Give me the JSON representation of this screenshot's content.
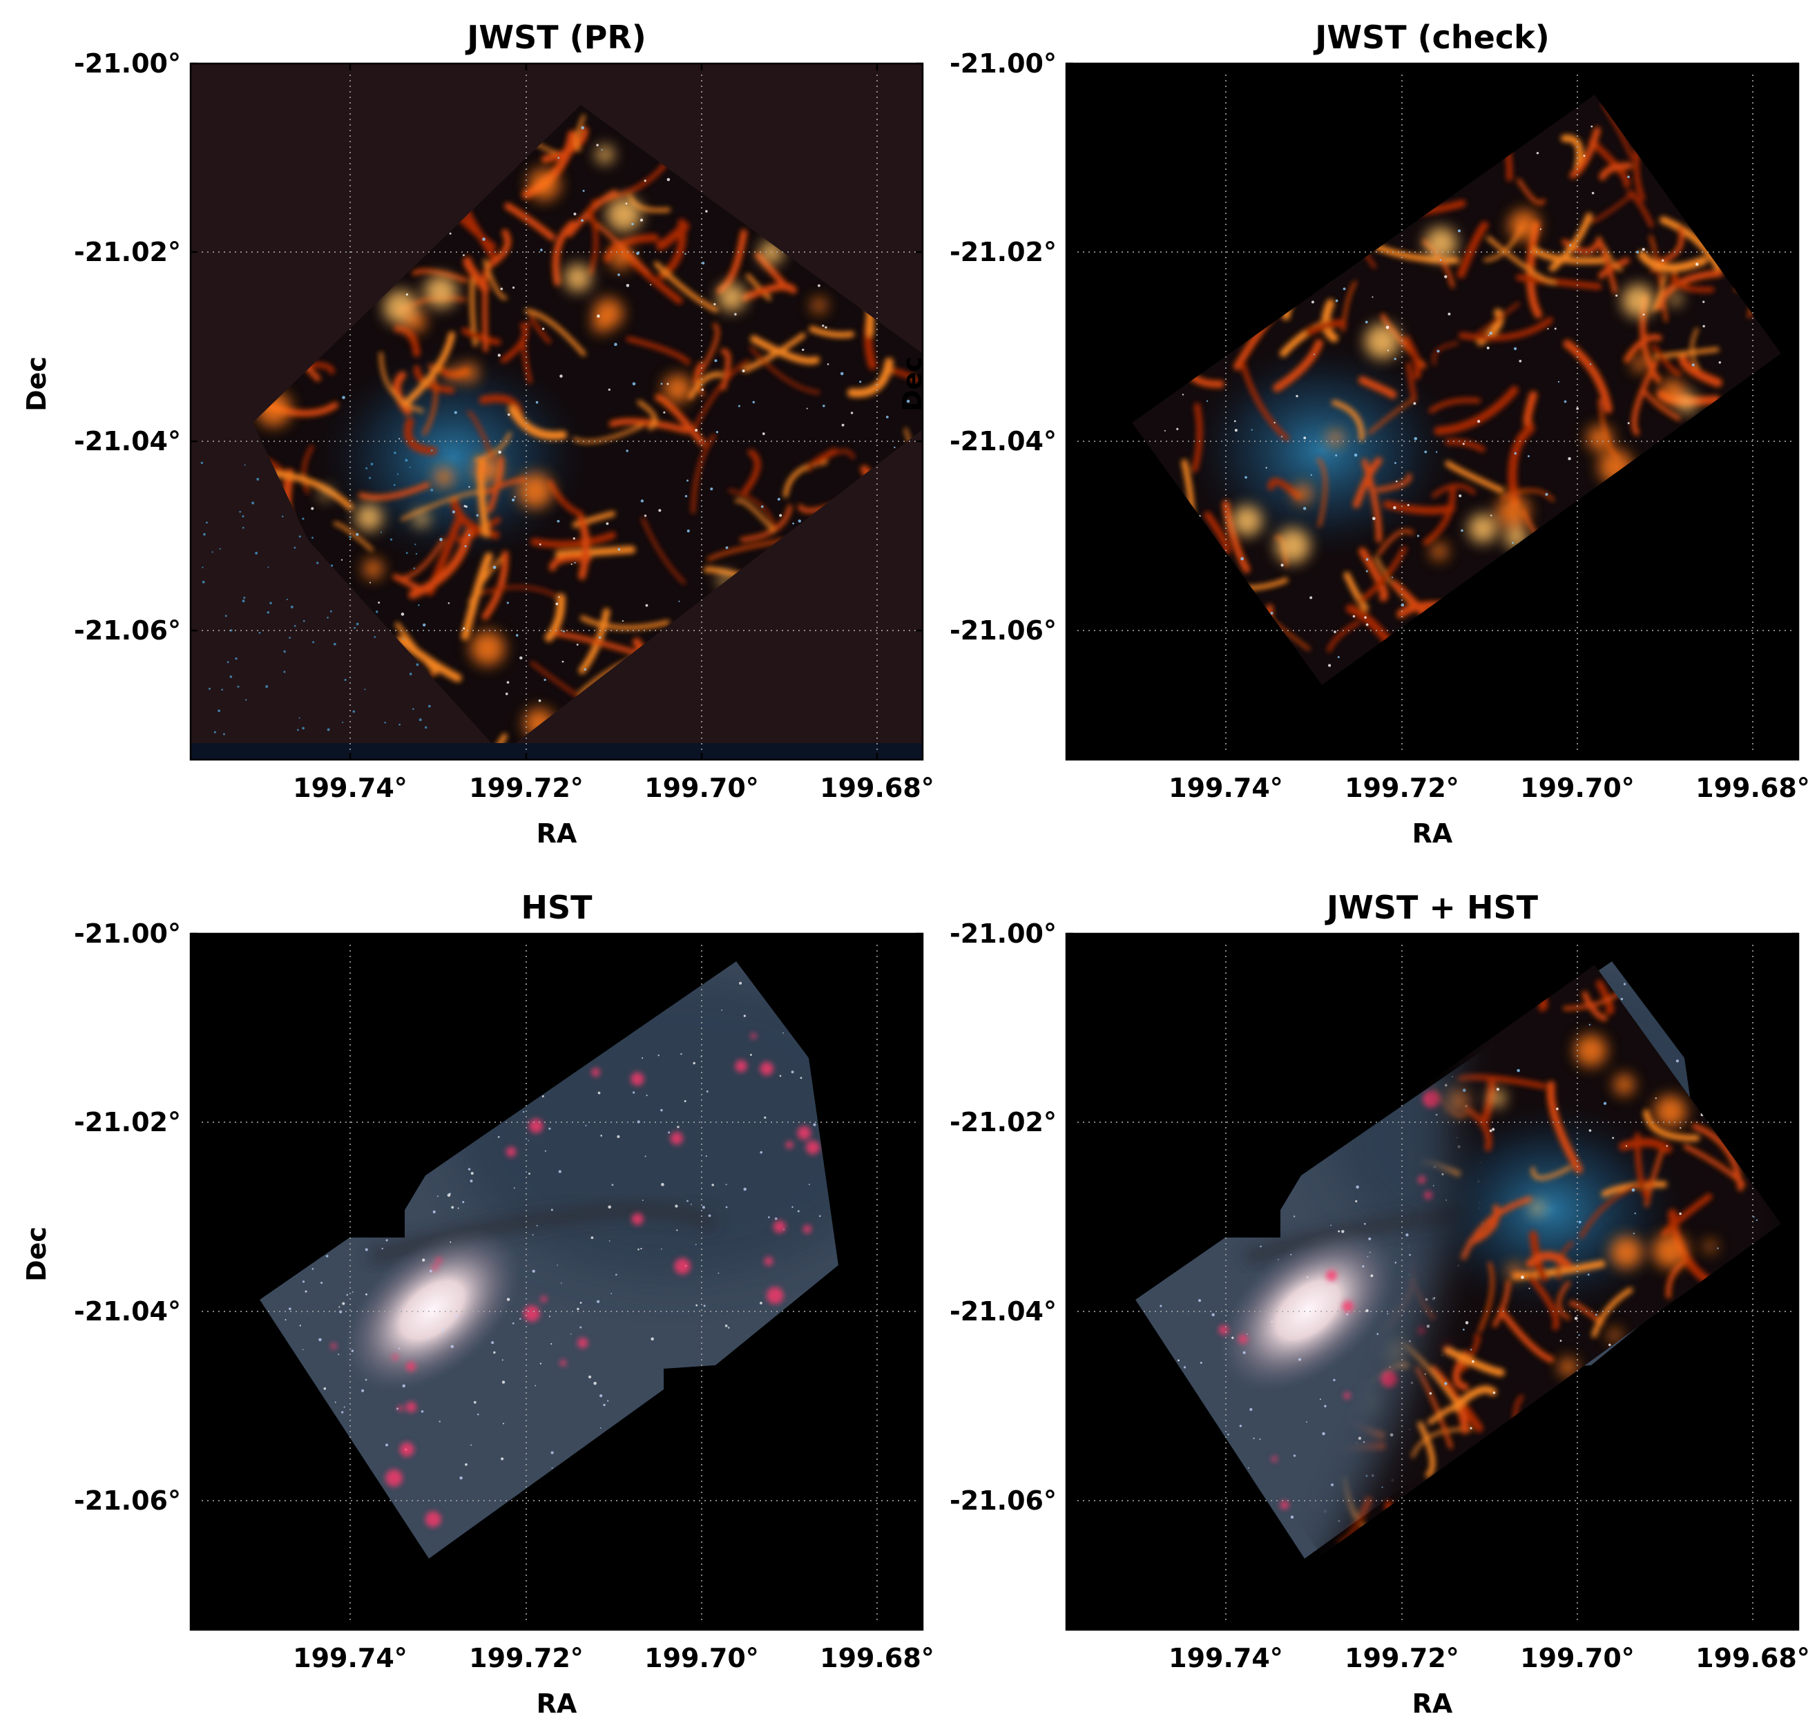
{
  "panels": [
    {
      "title": "JWST (PR)",
      "variant": "jwst_pr",
      "xlabel": "RA",
      "ylabel": "Dec",
      "xticks": [
        "199.74°",
        "199.72°",
        "199.70°",
        "199.68°"
      ],
      "yticks": [
        "-21.00°",
        "-21.02°",
        "-21.04°",
        "-21.06°"
      ]
    },
    {
      "title": "JWST (check)",
      "variant": "jwst_check",
      "xlabel": "RA",
      "ylabel": "Dec",
      "xticks": [
        "199.74°",
        "199.72°",
        "199.70°",
        "199.68°"
      ],
      "yticks": [
        "-21.00°",
        "-21.02°",
        "-21.04°",
        "-21.06°"
      ]
    },
    {
      "title": "HST",
      "variant": "hst",
      "xlabel": "RA",
      "ylabel": "Dec",
      "xticks": [
        "199.74°",
        "199.72°",
        "199.70°",
        "199.68°"
      ],
      "yticks": [
        "-21.00°",
        "-21.02°",
        "-21.04°",
        "-21.06°"
      ]
    },
    {
      "title": "JWST + HST",
      "variant": "combined",
      "xlabel": "RA",
      "ylabel": "",
      "xticks": [
        "199.74°",
        "199.72°",
        "199.70°",
        "199.68°"
      ],
      "yticks": [
        "-21.00°",
        "-21.02°",
        "-21.04°",
        "-21.06°"
      ]
    }
  ],
  "colors": {
    "jwst_background": "#231417",
    "black_background": "#000000",
    "jwst_glow": "#ff6a10",
    "jwst_bright": "#ffd070",
    "jwst_blue": "#1a6fa0",
    "hst_disk": "#4a5a6e",
    "hst_bulge": "#f0e8f0",
    "hst_hii": "#ff3a6a",
    "grid": "#aaaaaa"
  }
}
